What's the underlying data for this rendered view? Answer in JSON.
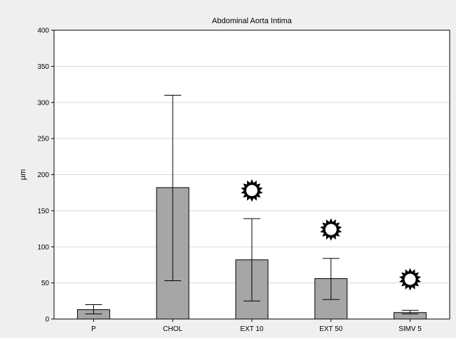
{
  "chart_data": {
    "type": "bar",
    "title": "Abdominal Aorta Intima",
    "xlabel": "",
    "ylabel": "µm",
    "ylim": [
      0,
      400
    ],
    "yticks": [
      0,
      50,
      100,
      150,
      200,
      250,
      300,
      350,
      400
    ],
    "grid": true,
    "categories": [
      "P",
      "CHOL",
      "EXT 10",
      "EXT 50",
      "SIMV 5"
    ],
    "values": [
      13,
      182,
      82,
      56,
      9
    ],
    "error_low": [
      7,
      53,
      25,
      27,
      7
    ],
    "error_high": [
      20,
      310,
      139,
      84,
      12
    ],
    "significance_markers": [
      false,
      false,
      true,
      true,
      true
    ],
    "marker_level": [
      null,
      null,
      178,
      124,
      55
    ],
    "colors": {
      "bar_fill": "#a6a6a6",
      "bar_stroke": "#000000",
      "grid": "#d9d9d9",
      "plot_bg": "#ffffff",
      "background": "#efefef"
    }
  }
}
